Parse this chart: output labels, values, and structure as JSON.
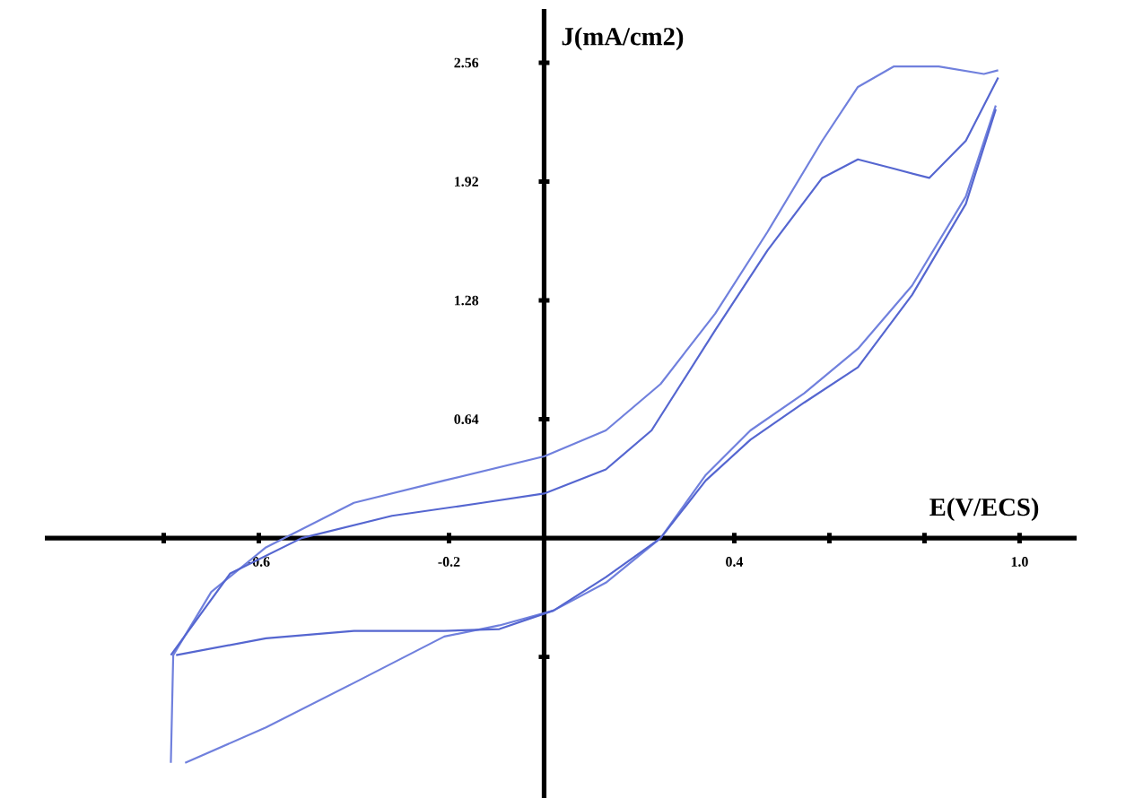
{
  "chart_data": {
    "type": "line",
    "xlabel": "E(V/ECS)",
    "ylabel": "J(mA/cm2)",
    "xlim": [
      -1.05,
      1.12
    ],
    "ylim": [
      -1.4,
      2.85
    ],
    "xticks": [
      {
        "value": -0.8,
        "label": null
      },
      {
        "value": -0.6,
        "label": "-0.6"
      },
      {
        "value": -0.2,
        "label": "-0.2"
      },
      {
        "value": 0.4,
        "label": "0.4"
      },
      {
        "value": 0.6,
        "label": null
      },
      {
        "value": 0.8,
        "label": null
      },
      {
        "value": 1.0,
        "label": "1.0"
      }
    ],
    "yticks": [
      {
        "value": -0.64,
        "label": null
      },
      {
        "value": 0.64,
        "label": "0.64"
      },
      {
        "value": 1.28,
        "label": "1.28"
      },
      {
        "value": 1.92,
        "label": "1.92"
      },
      {
        "value": 2.56,
        "label": "2.56"
      }
    ],
    "marker": "none",
    "line_style": "solid",
    "series": [
      {
        "color": "#7080dd",
        "x": [
          -0.785,
          -0.78,
          -0.7,
          -0.585,
          -0.4,
          -0.21,
          0,
          0.13,
          0.245,
          0.36,
          0.47,
          0.585,
          0.66,
          0.735,
          0.83,
          0.925,
          0.955
        ],
        "values": [
          -1.21,
          -0.63,
          -0.29,
          -0.05,
          0.19,
          0.31,
          0.44,
          0.58,
          0.83,
          1.21,
          1.65,
          2.14,
          2.43,
          2.54,
          2.54,
          2.5,
          2.52
        ]
      },
      {
        "color": "#7080dd",
        "x": [
          0.95,
          0.887,
          0.774,
          0.66,
          0.547,
          0.434,
          0.34,
          0.245,
          0.13,
          0.02,
          -0.094,
          -0.21,
          -0.4,
          -0.585,
          -0.755
        ],
        "values": [
          2.33,
          1.84,
          1.36,
          1.02,
          0.78,
          0.58,
          0.34,
          0.0,
          -0.24,
          -0.39,
          -0.47,
          -0.53,
          -0.78,
          -1.02,
          -1.21
        ]
      },
      {
        "color": "#5566d0",
        "x": [
          -0.785,
          -0.66,
          -0.51,
          -0.32,
          -0.13,
          0,
          0.13,
          0.226,
          0.36,
          0.47,
          0.585,
          0.66,
          0.735,
          0.81,
          0.887,
          0.955
        ],
        "values": [
          -0.63,
          -0.19,
          0.0,
          0.12,
          0.19,
          0.24,
          0.37,
          0.58,
          1.12,
          1.55,
          1.94,
          2.04,
          1.99,
          1.94,
          2.14,
          2.48
        ]
      },
      {
        "color": "#5566d0",
        "x": [
          0.95,
          0.887,
          0.774,
          0.66,
          0.547,
          0.434,
          0.34,
          0.245,
          0.13,
          0.02,
          -0.094,
          -0.21,
          -0.4,
          -0.585,
          -0.774
        ],
        "values": [
          2.31,
          1.8,
          1.31,
          0.92,
          0.73,
          0.53,
          0.31,
          0.0,
          -0.21,
          -0.39,
          -0.49,
          -0.5,
          -0.5,
          -0.54,
          -0.63
        ]
      }
    ]
  }
}
